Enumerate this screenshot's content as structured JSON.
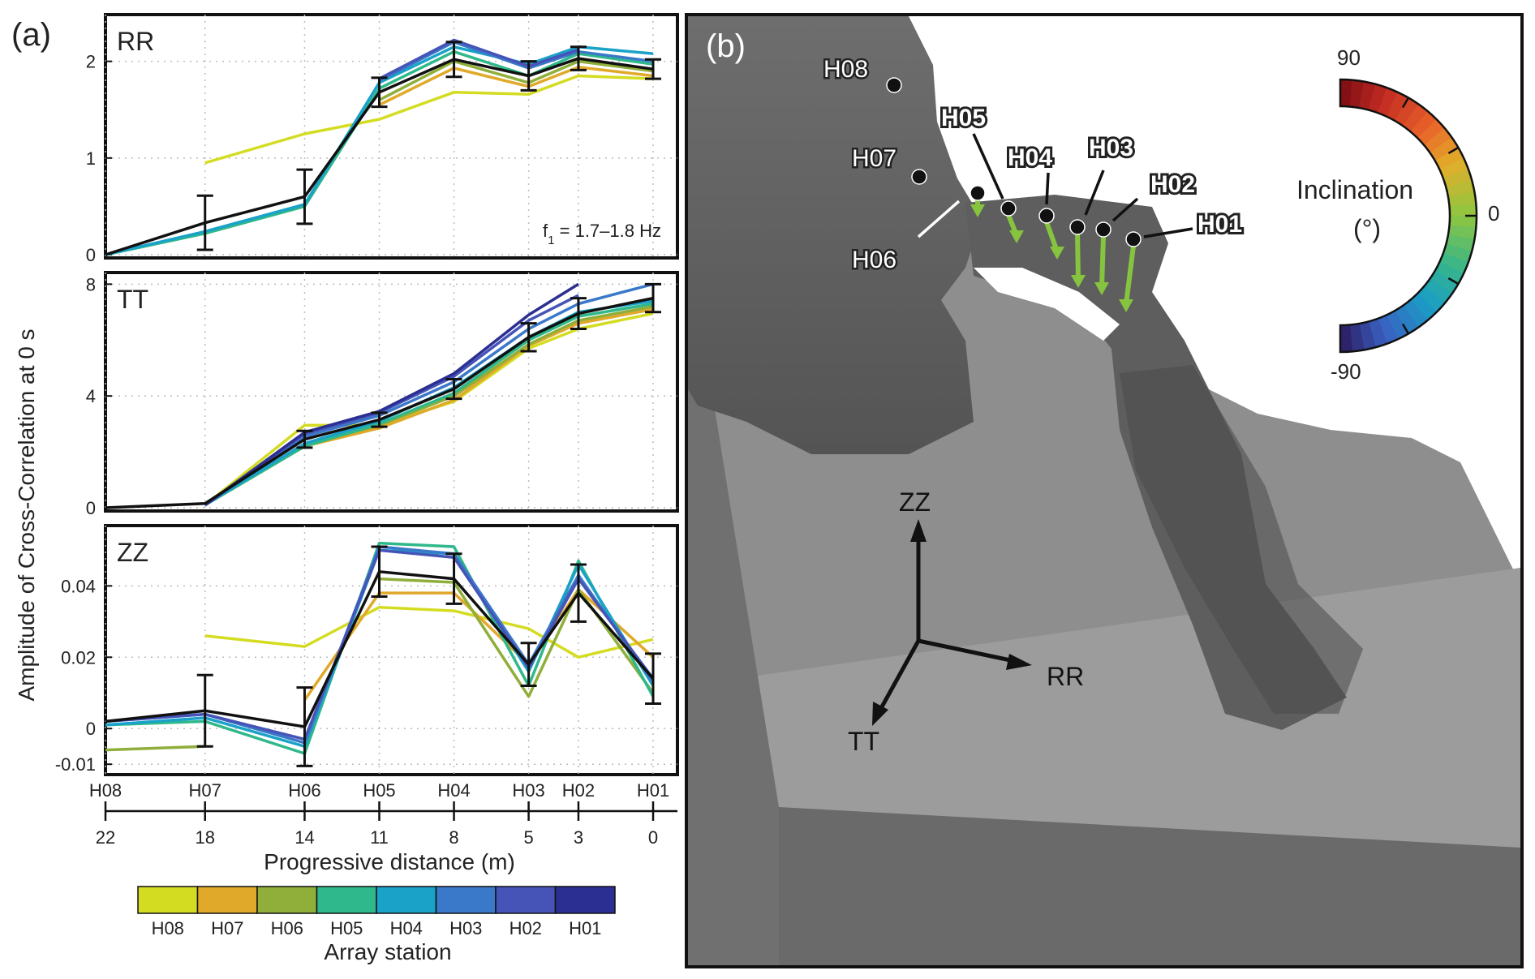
{
  "panel_a": {
    "label": "(a)",
    "ylabel": "Amplitude of Cross-Correlation at 0 s"
  },
  "panel_b": {
    "label": "(b)",
    "inclination_title_1": "Inclination",
    "inclination_title_2": "(°)",
    "scale_max": "90",
    "scale_mid": "0",
    "scale_min": "-90",
    "axes": {
      "zz": "ZZ",
      "rr": "RR",
      "tt": "TT"
    }
  },
  "stations": {
    "names": [
      "H08",
      "H07",
      "H06",
      "H05",
      "H04",
      "H03",
      "H02",
      "H01"
    ],
    "distances": [
      "22",
      "18",
      "14",
      "11",
      "8",
      "5",
      "3",
      "0"
    ],
    "colors": [
      "#d4dc22",
      "#e0a92a",
      "#8fae3a",
      "#2fb88b",
      "#1aa2c8",
      "#3a78c9",
      "#4654b8",
      "#2c2f92"
    ],
    "mean_color": "#111111",
    "xlabel": "Progressive distance (m)",
    "legend_title": "Array station"
  },
  "chart_data": [
    {
      "type": "line",
      "title": "RR",
      "annotation_base": "f",
      "annotation_sub": "1",
      "annotation_rest": " = 1.7–1.8 Hz",
      "x": [
        22,
        18,
        14,
        11,
        8,
        5,
        3,
        0
      ],
      "ylim": [
        0,
        2.45
      ],
      "yticks": [
        0,
        1,
        2
      ],
      "ytick_labels": [
        "0",
        "1",
        "2"
      ],
      "grid": true,
      "series": [
        {
          "name": "H08",
          "values": [
            null,
            0.95,
            1.25,
            1.4,
            1.68,
            1.66,
            1.85,
            1.82
          ]
        },
        {
          "name": "H07",
          "values": [
            null,
            null,
            null,
            1.55,
            1.93,
            1.74,
            1.94,
            1.85
          ]
        },
        {
          "name": "H06",
          "values": [
            null,
            null,
            null,
            1.6,
            2.0,
            1.78,
            2.0,
            1.9
          ]
        },
        {
          "name": "H05",
          "values": [
            0,
            0.22,
            0.5,
            1.72,
            2.1,
            1.85,
            2.08,
            1.97
          ]
        },
        {
          "name": "H04",
          "values": [
            0,
            0.24,
            0.52,
            1.78,
            2.15,
            1.97,
            2.15,
            2.08
          ]
        },
        {
          "name": "H03",
          "values": [
            null,
            null,
            null,
            1.8,
            2.2,
            1.93,
            2.1,
            2.0
          ]
        },
        {
          "name": "H02",
          "values": [
            null,
            null,
            null,
            1.82,
            2.22,
            1.95,
            2.12,
            null
          ]
        },
        {
          "name": "H01",
          "values": [
            null,
            null,
            null,
            null,
            null,
            null,
            null,
            null
          ]
        }
      ],
      "mean": {
        "values": [
          0,
          0.33,
          0.6,
          1.68,
          2.02,
          1.85,
          2.03,
          1.92
        ],
        "error": [
          null,
          0.28,
          0.28,
          0.15,
          0.18,
          0.15,
          0.12,
          0.1
        ]
      }
    },
    {
      "type": "line",
      "title": "TT",
      "x": [
        22,
        18,
        14,
        11,
        8,
        5,
        3,
        0
      ],
      "ylim": [
        0,
        8.3
      ],
      "yticks": [
        0,
        4,
        8
      ],
      "ytick_labels": [
        "0",
        "4",
        "8"
      ],
      "grid": true,
      "series": [
        {
          "name": "H08",
          "values": [
            null,
            0.1,
            2.95,
            2.95,
            3.8,
            5.7,
            6.4,
            6.95
          ]
        },
        {
          "name": "H07",
          "values": [
            null,
            0.1,
            2.2,
            2.85,
            3.85,
            5.8,
            6.6,
            7.1
          ]
        },
        {
          "name": "H06",
          "values": [
            null,
            0.1,
            2.25,
            2.95,
            4.0,
            5.85,
            6.7,
            7.2
          ]
        },
        {
          "name": "H05",
          "values": [
            null,
            0.1,
            2.2,
            3.0,
            4.1,
            6.0,
            6.85,
            7.3
          ]
        },
        {
          "name": "H04",
          "values": [
            null,
            0.1,
            2.3,
            3.1,
            4.3,
            6.1,
            7.0,
            7.4
          ]
        },
        {
          "name": "H03",
          "values": [
            null,
            0.1,
            2.55,
            3.3,
            4.5,
            6.4,
            7.3,
            8.0
          ]
        },
        {
          "name": "H02",
          "values": [
            null,
            0.1,
            2.65,
            3.4,
            4.7,
            6.7,
            7.6,
            null
          ]
        },
        {
          "name": "H01",
          "values": [
            null,
            0.1,
            2.7,
            3.45,
            4.8,
            6.9,
            8.0,
            null
          ]
        }
      ],
      "mean": {
        "values": [
          0,
          0.15,
          2.45,
          3.15,
          4.25,
          6.1,
          6.95,
          7.5
        ],
        "error": [
          null,
          null,
          0.3,
          0.25,
          0.35,
          0.5,
          0.55,
          0.5
        ]
      }
    },
    {
      "type": "line",
      "title": "ZZ",
      "x": [
        22,
        18,
        14,
        11,
        8,
        5,
        3,
        0
      ],
      "ylim": [
        -0.012,
        0.056
      ],
      "yticks": [
        -0.01,
        0,
        0.02,
        0.04
      ],
      "ytick_labels": [
        "-0.01",
        "0",
        "0.02",
        "0.04"
      ],
      "grid": true,
      "series": [
        {
          "name": "H08",
          "values": [
            null,
            0.026,
            0.023,
            0.034,
            0.033,
            0.028,
            0.02,
            0.025
          ]
        },
        {
          "name": "H07",
          "values": [
            null,
            null,
            0.008,
            0.038,
            0.038,
            0.018,
            0.039,
            0.02
          ]
        },
        {
          "name": "H06",
          "values": [
            -0.006,
            -0.005,
            null,
            0.042,
            0.041,
            0.009,
            0.039,
            0.01
          ]
        },
        {
          "name": "H05",
          "values": [
            0.001,
            0.002,
            -0.007,
            0.052,
            0.051,
            0.012,
            0.047,
            0.009
          ]
        },
        {
          "name": "H04",
          "values": [
            0.001,
            0.003,
            -0.005,
            0.05,
            0.049,
            0.016,
            0.046,
            0.012
          ]
        },
        {
          "name": "H03",
          "values": [
            0.002,
            0.004,
            -0.004,
            0.051,
            0.049,
            0.018,
            0.043,
            0.013
          ]
        },
        {
          "name": "H02",
          "values": [
            0.002,
            0.004,
            -0.003,
            0.05,
            0.048,
            0.017,
            0.042,
            0.014
          ]
        },
        {
          "name": "H01",
          "values": [
            null,
            null,
            null,
            null,
            null,
            null,
            null,
            null
          ]
        }
      ],
      "mean": {
        "values": [
          0.002,
          0.005,
          0.0005,
          0.044,
          0.042,
          0.018,
          0.038,
          0.014
        ],
        "error": [
          null,
          0.01,
          0.011,
          0.007,
          0.007,
          0.006,
          0.008,
          0.007
        ]
      }
    }
  ]
}
